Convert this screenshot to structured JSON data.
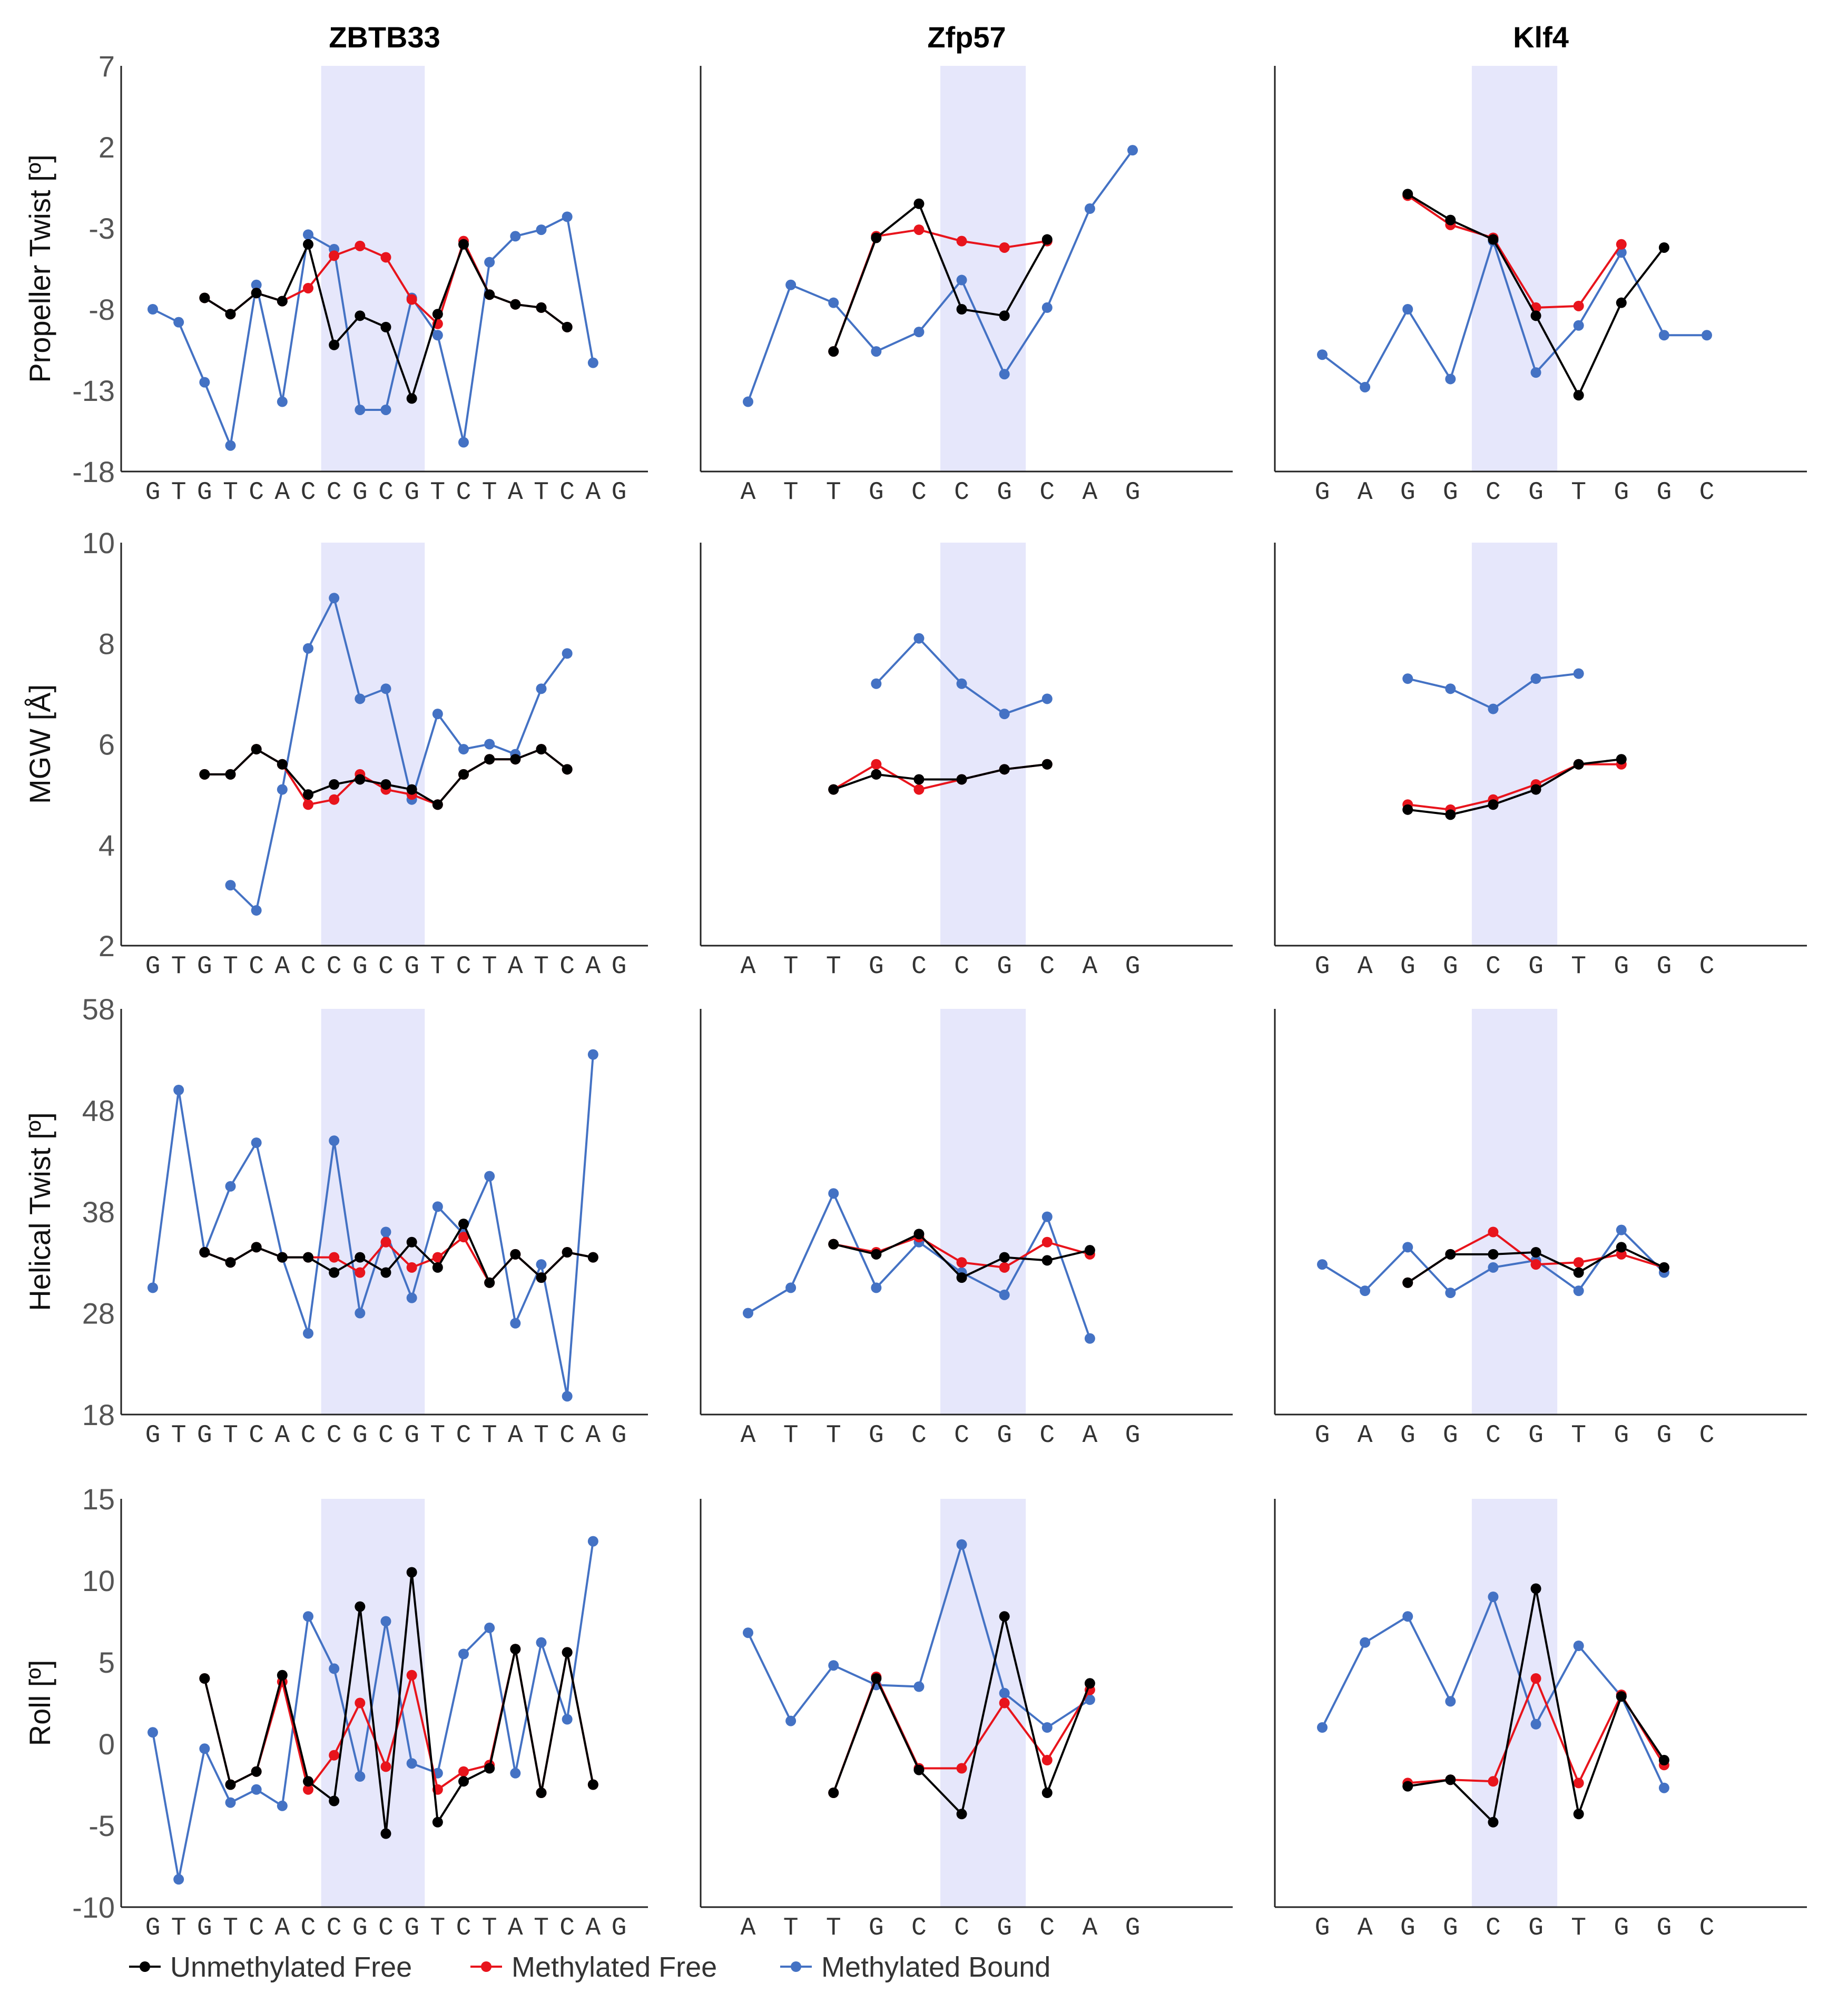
{
  "colors": {
    "unmethylated_free": "#000000",
    "methylated_free": "#e8141c",
    "methylated_bound": "#4472c4",
    "highlight": "#e6e7fb"
  },
  "legend": [
    {
      "key": "unmethylated_free",
      "label": "Unmethylated Free"
    },
    {
      "key": "methylated_free",
      "label": "Methylated Free"
    },
    {
      "key": "methylated_bound",
      "label": "Methylated Bound"
    }
  ],
  "chart_data": {
    "type": "line",
    "columns": [
      {
        "title": "ZBTB33",
        "sequence": [
          "G",
          "T",
          "G",
          "T",
          "C",
          "A",
          "C",
          "C",
          "G",
          "C",
          "G",
          "T",
          "C",
          "T",
          "A",
          "T",
          "C",
          "A",
          "G"
        ],
        "highlight_positions": [
          7,
          10
        ]
      },
      {
        "title": "Zfp57",
        "sequence": [
          "A",
          "T",
          "T",
          "G",
          "C",
          "C",
          "G",
          "C",
          "A",
          "G"
        ],
        "highlight_positions": [
          5,
          6
        ]
      },
      {
        "title": "Klf4",
        "sequence": [
          "G",
          "A",
          "G",
          "G",
          "C",
          "G",
          "T",
          "G",
          "G",
          "C"
        ],
        "highlight_positions": [
          4,
          5
        ]
      }
    ],
    "rows": [
      {
        "ylabel": "Propeller Twist [º]",
        "ylim": [
          -18,
          7
        ],
        "yticks": [
          "7",
          "2",
          "-3",
          "-8",
          "-13",
          "-18"
        ],
        "panels": [
          {
            "x": [
              0,
              1,
              2,
              3,
              4,
              5,
              6,
              7,
              8,
              9,
              10,
              11,
              12,
              13,
              14,
              15,
              16,
              17,
              18
            ],
            "unmethylated_free": [
              null,
              null,
              -7.3,
              -8.3,
              -7.0,
              -7.5,
              -4.0,
              -10.2,
              -8.4,
              -9.1,
              -13.5,
              -8.3,
              -4.0,
              -7.1,
              -7.7,
              -7.9,
              -9.1,
              null,
              null
            ],
            "methylated_free": [
              null,
              null,
              -7.3,
              -8.3,
              -7.0,
              -7.5,
              -6.7,
              -4.7,
              -4.1,
              -4.8,
              -7.4,
              -8.9,
              -3.8,
              -7.1,
              -7.7,
              -7.9,
              -9.1,
              null,
              null
            ],
            "methylated_bound": [
              -8.0,
              -8.8,
              -12.5,
              -16.4,
              -6.5,
              -13.7,
              -3.4,
              -4.3,
              -14.2,
              -14.2,
              -7.3,
              -9.6,
              -16.2,
              -5.1,
              -3.5,
              -3.1,
              -2.3,
              -11.3,
              null
            ]
          },
          {
            "x": [
              0,
              1,
              2,
              3,
              4,
              5,
              6,
              7,
              8,
              9
            ],
            "unmethylated_free": [
              null,
              null,
              -10.6,
              -3.6,
              -1.5,
              -8.0,
              -8.4,
              -3.7,
              null,
              null
            ],
            "methylated_free": [
              null,
              null,
              -10.6,
              -3.5,
              -3.1,
              -3.8,
              -4.2,
              -3.8,
              null,
              null
            ],
            "methylated_bound": [
              -13.7,
              -6.5,
              -7.6,
              -10.6,
              -9.4,
              -6.2,
              -12.0,
              -7.9,
              -1.8,
              1.8
            ]
          },
          {
            "x": [
              0,
              1,
              2,
              3,
              4,
              5,
              6,
              7,
              8,
              9
            ],
            "unmethylated_free": [
              null,
              null,
              -0.9,
              -2.5,
              -3.7,
              -8.4,
              -13.3,
              -7.6,
              -4.2,
              null
            ],
            "methylated_free": [
              null,
              null,
              -1.0,
              -2.8,
              -3.6,
              -7.9,
              -7.8,
              -4.0,
              null,
              null
            ],
            "methylated_bound": [
              -10.8,
              -12.8,
              -8.0,
              -12.3,
              -3.8,
              -11.9,
              -9.0,
              -4.5,
              -9.6,
              -9.6
            ]
          }
        ]
      },
      {
        "ylabel": "MGW [Å]",
        "ylim": [
          2,
          10
        ],
        "yticks": [
          "10",
          "8",
          "6",
          "4",
          "2"
        ],
        "panels": [
          {
            "x": [
              0,
              1,
              2,
              3,
              4,
              5,
              6,
              7,
              8,
              9,
              10,
              11,
              12,
              13,
              14,
              15,
              16,
              17,
              18
            ],
            "unmethylated_free": [
              null,
              null,
              5.4,
              5.4,
              5.9,
              5.6,
              5.0,
              5.2,
              5.3,
              5.2,
              5.1,
              4.8,
              5.4,
              5.7,
              5.7,
              5.9,
              5.5,
              null,
              null
            ],
            "methylated_free": [
              null,
              null,
              5.4,
              5.4,
              5.9,
              5.6,
              4.8,
              4.9,
              5.4,
              5.1,
              5.0,
              4.8,
              5.4,
              5.7,
              5.7,
              5.9,
              5.5,
              null,
              null
            ],
            "methylated_bound": [
              null,
              null,
              null,
              3.2,
              2.7,
              5.1,
              7.9,
              8.9,
              6.9,
              7.1,
              4.9,
              6.6,
              5.9,
              6.0,
              5.8,
              7.1,
              7.8,
              null,
              null
            ]
          },
          {
            "x": [
              0,
              1,
              2,
              3,
              4,
              5,
              6,
              7,
              8,
              9
            ],
            "unmethylated_free": [
              null,
              null,
              5.1,
              5.4,
              5.3,
              5.3,
              5.5,
              5.6,
              null,
              null
            ],
            "methylated_free": [
              null,
              null,
              5.1,
              5.6,
              5.1,
              5.3,
              5.5,
              5.6,
              null,
              null
            ],
            "methylated_bound": [
              null,
              null,
              null,
              7.2,
              8.1,
              7.2,
              6.6,
              6.9,
              null,
              null
            ]
          },
          {
            "x": [
              0,
              1,
              2,
              3,
              4,
              5,
              6,
              7,
              8,
              9
            ],
            "unmethylated_free": [
              null,
              null,
              4.7,
              4.6,
              4.8,
              5.1,
              5.6,
              5.7,
              null,
              null
            ],
            "methylated_free": [
              null,
              null,
              4.8,
              4.7,
              4.9,
              5.2,
              5.6,
              5.6,
              null,
              null
            ],
            "methylated_bound": [
              null,
              null,
              7.3,
              7.1,
              6.7,
              7.3,
              7.4,
              null,
              null,
              null
            ]
          }
        ]
      },
      {
        "ylabel": "Helical Twist [º]",
        "ylim": [
          18,
          58
        ],
        "yticks": [
          "58",
          "48",
          "38",
          "28",
          "18"
        ],
        "panels": [
          {
            "x": [
              0,
              1,
              2,
              3,
              4,
              5,
              6,
              7,
              8,
              9,
              10,
              11,
              12,
              13,
              14,
              15,
              16,
              17,
              18
            ],
            "unmethylated_free": [
              null,
              null,
              34.0,
              33.0,
              34.5,
              33.5,
              33.5,
              32.0,
              33.5,
              32.0,
              35.0,
              32.5,
              36.8,
              31.0,
              33.8,
              31.5,
              34.0,
              33.5,
              null
            ],
            "methylated_free": [
              null,
              null,
              34.0,
              33.0,
              34.5,
              33.5,
              33.5,
              33.5,
              32.0,
              35.0,
              32.5,
              33.5,
              35.5,
              31.0,
              33.8,
              31.5,
              34.0,
              33.5,
              null
            ],
            "methylated_bound": [
              30.5,
              50.0,
              34.0,
              40.5,
              44.8,
              33.5,
              26.0,
              45.0,
              28.0,
              36.0,
              29.5,
              38.5,
              35.8,
              41.5,
              27.0,
              32.8,
              19.8,
              53.5,
              null
            ]
          },
          {
            "x": [
              0,
              1,
              2,
              3,
              4,
              5,
              6,
              7,
              8,
              9
            ],
            "unmethylated_free": [
              null,
              null,
              34.8,
              33.8,
              35.8,
              31.5,
              33.5,
              33.2,
              34.2,
              null
            ],
            "methylated_free": [
              null,
              null,
              34.8,
              34.0,
              35.5,
              33.0,
              32.5,
              35.0,
              33.8,
              null
            ],
            "methylated_bound": [
              28.0,
              30.5,
              39.8,
              30.5,
              35.0,
              32.0,
              29.8,
              37.5,
              25.5,
              null
            ]
          },
          {
            "x": [
              0,
              1,
              2,
              3,
              4,
              5,
              6,
              7,
              8,
              9
            ],
            "unmethylated_free": [
              null,
              null,
              31.0,
              33.8,
              33.8,
              34.0,
              32.0,
              34.5,
              32.5,
              null
            ],
            "methylated_free": [
              null,
              null,
              31.0,
              33.8,
              36.0,
              32.8,
              33.0,
              33.8,
              32.5,
              null
            ],
            "methylated_bound": [
              32.8,
              30.2,
              34.5,
              30.0,
              32.5,
              33.2,
              30.2,
              36.2,
              32.0,
              null
            ]
          }
        ]
      },
      {
        "ylabel": "Roll [º]",
        "ylim": [
          -10,
          15
        ],
        "yticks": [
          "15",
          "10",
          "5",
          "0",
          "-5",
          "-10"
        ],
        "panels": [
          {
            "x": [
              0,
              1,
              2,
              3,
              4,
              5,
              6,
              7,
              8,
              9,
              10,
              11,
              12,
              13,
              14,
              15,
              16,
              17,
              18
            ],
            "unmethylated_free": [
              null,
              null,
              4.0,
              -2.5,
              -1.7,
              4.2,
              -2.3,
              -3.5,
              8.4,
              -5.5,
              10.5,
              -4.8,
              -2.3,
              -1.5,
              5.8,
              -3.0,
              5.6,
              -2.5,
              null
            ],
            "methylated_free": [
              null,
              null,
              4.0,
              -2.5,
              -1.7,
              3.8,
              -2.8,
              -0.7,
              2.5,
              -1.4,
              4.2,
              -2.8,
              -1.7,
              -1.3,
              5.8,
              -3.0,
              5.6,
              -2.5,
              null
            ],
            "methylated_bound": [
              0.7,
              -8.3,
              -0.3,
              -3.6,
              -2.8,
              -3.8,
              7.8,
              4.6,
              -2.0,
              7.5,
              -1.2,
              -1.8,
              5.5,
              7.1,
              -1.8,
              6.2,
              1.5,
              12.4,
              null
            ]
          },
          {
            "x": [
              0,
              1,
              2,
              3,
              4,
              5,
              6,
              7,
              8,
              9
            ],
            "unmethylated_free": [
              null,
              null,
              -3.0,
              4.0,
              -1.6,
              -4.3,
              7.8,
              -3.0,
              3.7,
              null
            ],
            "methylated_free": [
              null,
              null,
              -3.0,
              4.1,
              -1.5,
              -1.5,
              2.5,
              -1.0,
              3.3,
              null
            ],
            "methylated_bound": [
              6.8,
              1.4,
              4.8,
              3.6,
              3.5,
              12.2,
              3.1,
              1.0,
              2.7,
              null
            ]
          },
          {
            "x": [
              0,
              1,
              2,
              3,
              4,
              5,
              6,
              7,
              8,
              9
            ],
            "unmethylated_free": [
              null,
              null,
              -2.6,
              -2.2,
              -4.8,
              9.5,
              -4.3,
              2.9,
              -1.0,
              null
            ],
            "methylated_free": [
              null,
              null,
              -2.4,
              -2.2,
              -2.3,
              4.0,
              -2.4,
              3.0,
              -1.3,
              null
            ],
            "methylated_bound": [
              1.0,
              6.2,
              7.8,
              2.6,
              9.0,
              1.2,
              6.0,
              2.9,
              -2.7,
              null
            ]
          }
        ]
      }
    ]
  }
}
